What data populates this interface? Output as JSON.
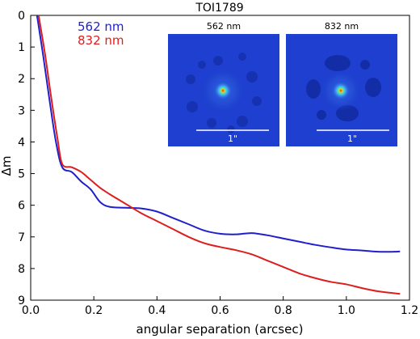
{
  "chart_data": {
    "type": "line",
    "title": "TOI1789",
    "xlabel": "angular separation (arcsec)",
    "ylabel": "Δm",
    "xlim": [
      0.0,
      1.2
    ],
    "ylim": [
      9,
      0
    ],
    "y_inverted": true,
    "grid": false,
    "legend_position": "top-left",
    "x_ticks": [
      0.0,
      0.2,
      0.4,
      0.6,
      0.8,
      1.0,
      1.2
    ],
    "x_tick_labels": [
      "0.0",
      "0.2",
      "0.4",
      "0.6",
      "0.8",
      "1.0",
      "1.2"
    ],
    "y_ticks": [
      0,
      1,
      2,
      3,
      4,
      5,
      6,
      7,
      8,
      9
    ],
    "y_tick_labels": [
      "0",
      "1",
      "2",
      "3",
      "4",
      "5",
      "6",
      "7",
      "8",
      "9"
    ],
    "series": [
      {
        "name": "562 nm",
        "color": "#1f1fcc",
        "x": [
          0.02,
          0.04,
          0.06,
          0.08,
          0.1,
          0.13,
          0.16,
          0.19,
          0.22,
          0.25,
          0.3,
          0.35,
          0.4,
          0.45,
          0.5,
          0.55,
          0.6,
          0.65,
          0.7,
          0.75,
          0.8,
          0.85,
          0.9,
          0.95,
          1.0,
          1.05,
          1.1,
          1.15,
          1.17
        ],
        "y": [
          0.0,
          1.3,
          2.7,
          4.0,
          4.8,
          4.95,
          5.25,
          5.5,
          5.9,
          6.05,
          6.08,
          6.1,
          6.2,
          6.4,
          6.6,
          6.8,
          6.9,
          6.92,
          6.88,
          6.95,
          7.05,
          7.15,
          7.25,
          7.33,
          7.4,
          7.43,
          7.47,
          7.47,
          7.46
        ]
      },
      {
        "name": "832 nm",
        "color": "#dd1e1e",
        "x": [
          0.025,
          0.045,
          0.065,
          0.085,
          0.1,
          0.13,
          0.16,
          0.19,
          0.22,
          0.25,
          0.3,
          0.35,
          0.4,
          0.45,
          0.5,
          0.55,
          0.6,
          0.65,
          0.7,
          0.75,
          0.8,
          0.85,
          0.9,
          0.95,
          1.0,
          1.05,
          1.1,
          1.15,
          1.17
        ],
        "y": [
          0.0,
          1.2,
          2.6,
          3.9,
          4.7,
          4.8,
          4.95,
          5.2,
          5.45,
          5.65,
          5.95,
          6.25,
          6.5,
          6.75,
          7.0,
          7.2,
          7.32,
          7.42,
          7.55,
          7.75,
          7.95,
          8.15,
          8.3,
          8.42,
          8.5,
          8.62,
          8.72,
          8.78,
          8.8
        ]
      }
    ],
    "insets": [
      {
        "label": "562 nm",
        "scale_label": "1\""
      },
      {
        "label": "832 nm",
        "scale_label": "1\""
      }
    ]
  },
  "colors": {
    "inset_background": "#1e3fcf",
    "inset_dark_blob": "#10289a",
    "inset_core": "#d8201a"
  }
}
